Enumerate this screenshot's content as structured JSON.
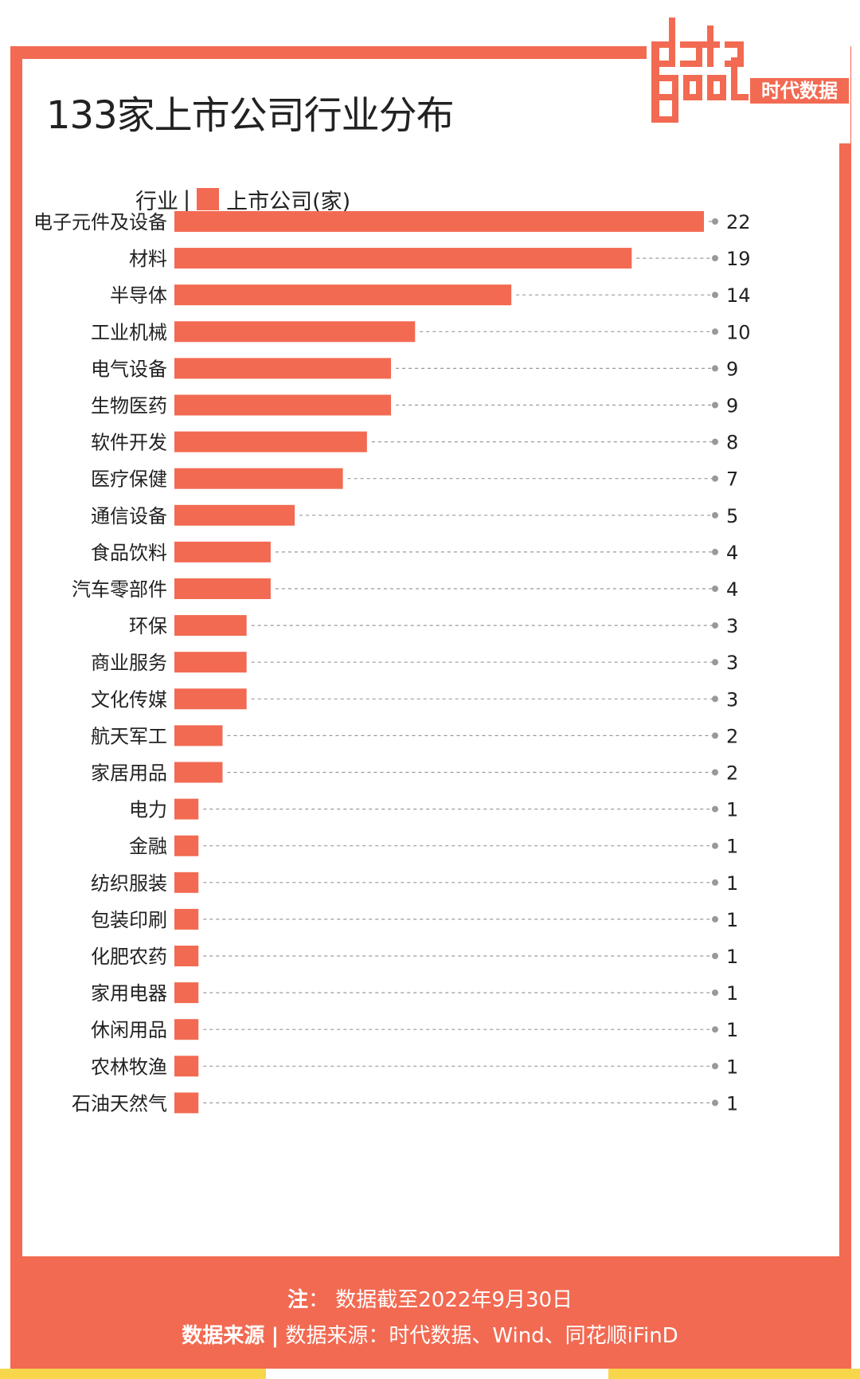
{
  "title": "133家上市公司行业分布",
  "logo": {
    "word_top": "data",
    "word_bottom": "good",
    "brand": "时代数据"
  },
  "legend": {
    "category_label": "行业",
    "separator": "|",
    "series_label": "上市公司(家)"
  },
  "colors": {
    "accent": "#f26a52",
    "yellow": "#f7d64c",
    "text": "#222222",
    "leader": "#999999"
  },
  "chart_data": {
    "type": "bar",
    "orientation": "horizontal",
    "categories": [
      "电子元件及设备",
      "材料",
      "半导体",
      "工业机械",
      "电气设备",
      "生物医药",
      "软件开发",
      "医疗保健",
      "通信设备",
      "食品饮料",
      "汽车零部件",
      "环保",
      "商业服务",
      "文化传媒",
      "航天军工",
      "家居用品",
      "电力",
      "金融",
      "纺织服装",
      "包装印刷",
      "化肥农药",
      "家用电器",
      "休闲用品",
      "农林牧渔",
      "石油天然气"
    ],
    "values": [
      22,
      19,
      14,
      10,
      9,
      9,
      8,
      7,
      5,
      4,
      4,
      3,
      3,
      3,
      2,
      2,
      1,
      1,
      1,
      1,
      1,
      1,
      1,
      1,
      1
    ],
    "value_labels": [
      "22",
      "19",
      "14",
      "10",
      "9",
      "9",
      "8",
      "7",
      "5",
      "4",
      "4",
      "3",
      "3",
      "3",
      "2",
      "2",
      "1",
      "1",
      "1",
      "1",
      "1",
      "1",
      "1",
      "1",
      "1"
    ],
    "series": [
      {
        "name": "上市公司(家)"
      }
    ],
    "xlim": [
      0,
      22
    ],
    "grid": false
  },
  "footer": {
    "note_label": "注",
    "note_colon": "：",
    "note_text": "数据截至2022年9月30日",
    "source_label": "数据来源",
    "source_sep": "|",
    "source_text": "数据来源：时代数据、Wind、同花顺iFinD"
  }
}
